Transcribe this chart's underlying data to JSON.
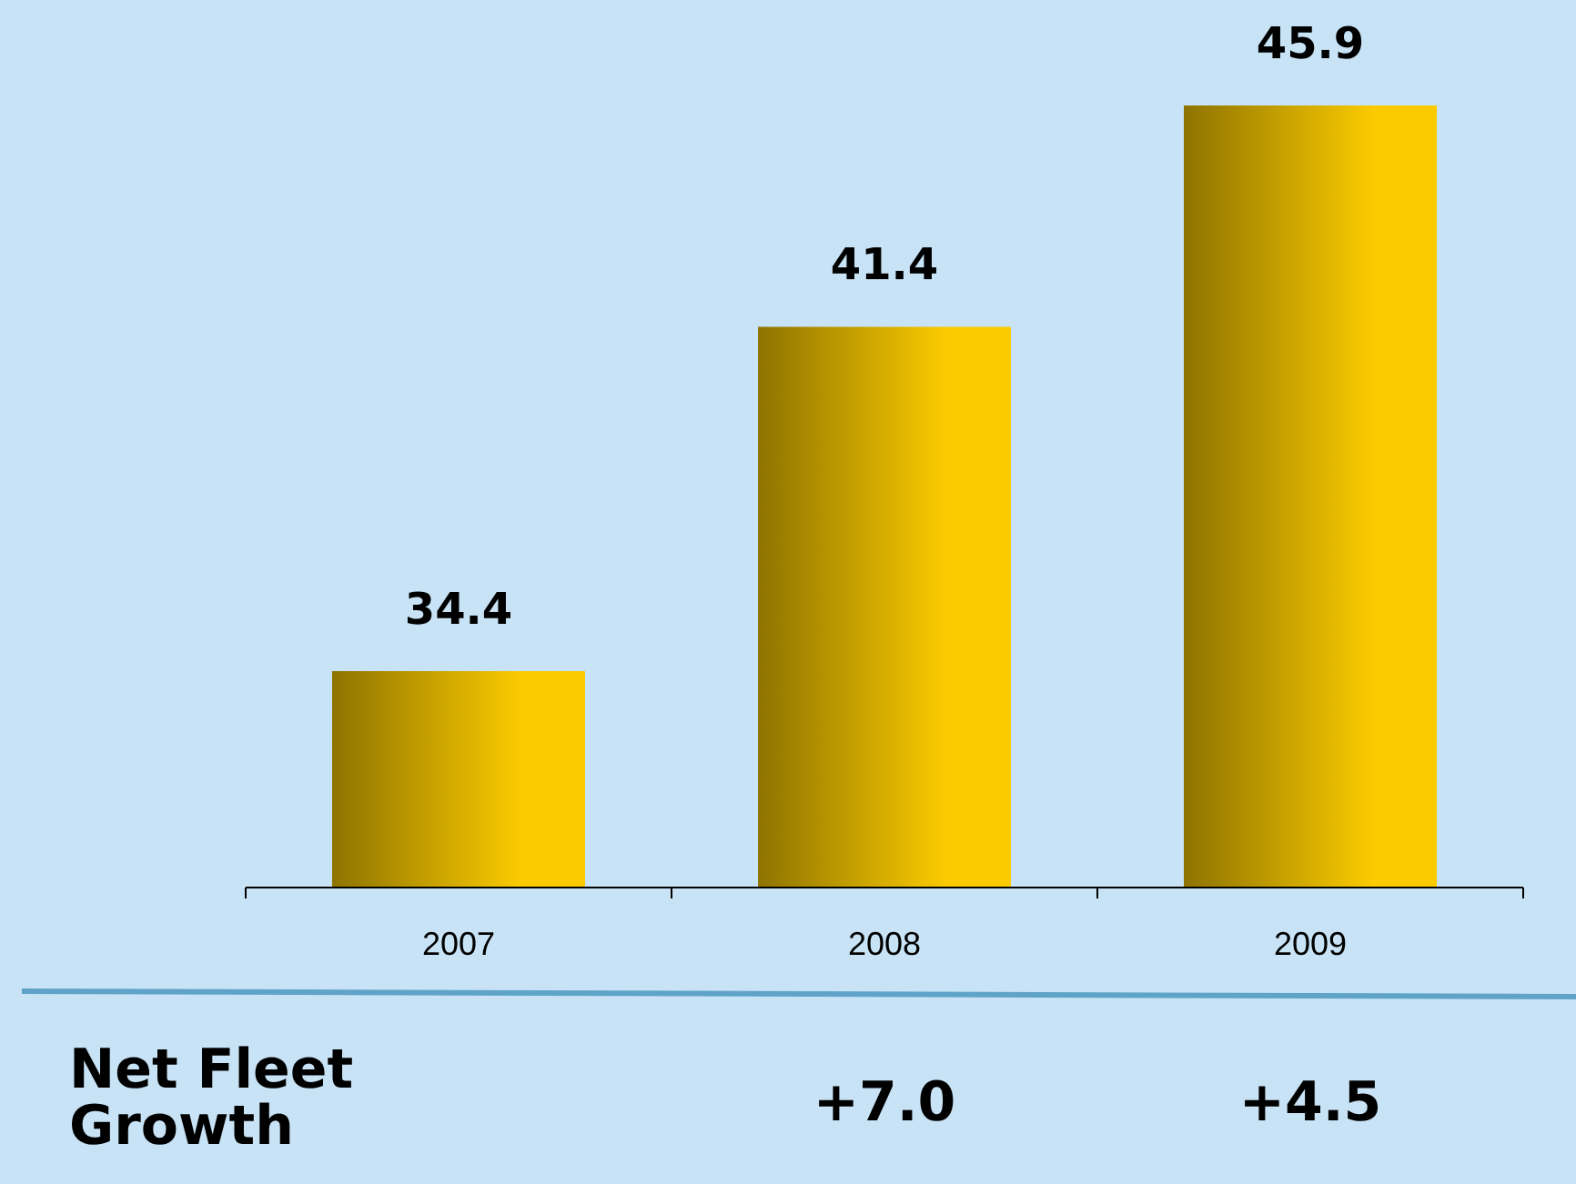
{
  "chart_data": {
    "type": "bar",
    "categories": [
      "2007",
      "2008",
      "2009"
    ],
    "values": [
      34.4,
      41.4,
      45.9
    ],
    "color": "#fbcb00",
    "ylim": [
      30,
      45.9
    ],
    "tick_labels": "x",
    "data_labels": true,
    "annotations": [
      "Net Fleet Growth",
      "+7.0",
      "+4.5"
    ]
  }
}
